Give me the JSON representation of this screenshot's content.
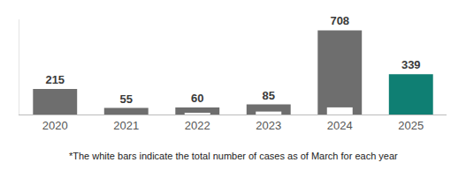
{
  "chart_data": {
    "type": "bar",
    "categories": [
      "2020",
      "2021",
      "2022",
      "2023",
      "2024",
      "2025"
    ],
    "series": [
      {
        "values": [
          215,
          55,
          60,
          85,
          708,
          339
        ],
        "colors": [
          "#6e6e6e",
          "#6e6e6e",
          "#6e6e6e",
          "#6e6e6e",
          "#6e6e6e",
          "#0f7f73"
        ],
        "data_labels": true
      },
      {
        "values": [
          null,
          null,
          15,
          25,
          60,
          null
        ],
        "color": "#ffffff",
        "data_labels": false
      }
    ],
    "ylim": [
      0,
      800
    ],
    "yticks": [],
    "tick_labels": "x",
    "grid": false,
    "annotations": [
      "*The white bars indicate the total number of cases as of March for each year"
    ]
  }
}
